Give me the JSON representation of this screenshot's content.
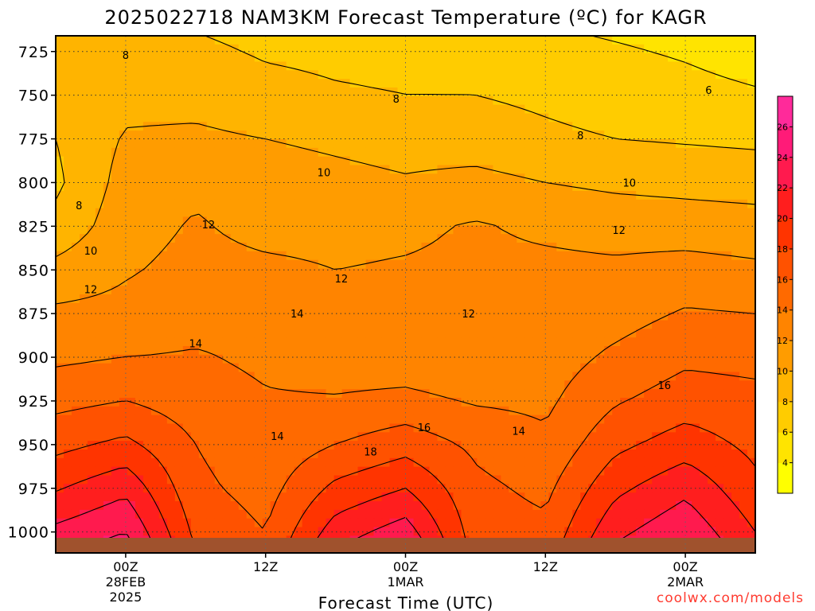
{
  "chart_data": {
    "type": "heatmap",
    "title": "2025022718 NAM3KM Forecast Temperature (ºC) for KAGR",
    "xlabel": "Forecast Time (UTC)",
    "ylabel": "",
    "y_scale": "pressure (hPa, inverted)",
    "y_ticks": [
      "725",
      "750",
      "775",
      "800",
      "825",
      "850",
      "875",
      "900",
      "925",
      "950",
      "975",
      "1000"
    ],
    "y_tick_values": [
      725,
      750,
      775,
      800,
      825,
      850,
      875,
      900,
      925,
      950,
      975,
      1000
    ],
    "ylim": [
      1012,
      716
    ],
    "x_ticks": [
      {
        "hours": 6,
        "label": "00Z",
        "sub1": "28FEB",
        "sub2": "2025"
      },
      {
        "hours": 18,
        "label": "12Z",
        "sub1": "",
        "sub2": ""
      },
      {
        "hours": 30,
        "label": "00Z",
        "sub1": "1MAR",
        "sub2": ""
      },
      {
        "hours": 42,
        "label": "12Z",
        "sub1": "",
        "sub2": ""
      },
      {
        "hours": 54,
        "label": "00Z",
        "sub1": "2MAR",
        "sub2": ""
      }
    ],
    "xlim": [
      0,
      60
    ],
    "grid": true,
    "colorbar": {
      "placement": "right",
      "levels": [
        4,
        6,
        8,
        10,
        12,
        14,
        16,
        18,
        20,
        22,
        24,
        26
      ],
      "labels": [
        "4",
        "6",
        "8",
        "10",
        "12",
        "14",
        "16",
        "18",
        "20",
        "22",
        "24",
        "26"
      ],
      "colors": [
        "#ffff00",
        "#ffe400",
        "#ffcc00",
        "#ffb400",
        "#ff9c00",
        "#ff8400",
        "#ff6a00",
        "#ff5200",
        "#ff3400",
        "#ff1e1e",
        "#ff1a4e",
        "#ff1b78",
        "#ff2a9a"
      ]
    },
    "contour_labels": [
      {
        "text": "8",
        "hours": 6.0,
        "p": 727
      },
      {
        "text": "8",
        "hours": 29.2,
        "p": 752
      },
      {
        "text": "6",
        "hours": 56.0,
        "p": 747
      },
      {
        "text": "8",
        "hours": 45.0,
        "p": 773
      },
      {
        "text": "10",
        "hours": 23.0,
        "p": 794
      },
      {
        "text": "10",
        "hours": 49.2,
        "p": 800
      },
      {
        "text": "8",
        "hours": 2.0,
        "p": 813
      },
      {
        "text": "12",
        "hours": 13.1,
        "p": 824
      },
      {
        "text": "12",
        "hours": 48.3,
        "p": 827
      },
      {
        "text": "10",
        "hours": 3.0,
        "p": 839
      },
      {
        "text": "12",
        "hours": 24.5,
        "p": 855
      },
      {
        "text": "12",
        "hours": 3.0,
        "p": 861
      },
      {
        "text": "14",
        "hours": 20.7,
        "p": 875
      },
      {
        "text": "12",
        "hours": 35.4,
        "p": 875
      },
      {
        "text": "14",
        "hours": 12.0,
        "p": 892
      },
      {
        "text": "16",
        "hours": 52.2,
        "p": 916
      },
      {
        "text": "16",
        "hours": 31.6,
        "p": 940
      },
      {
        "text": "14",
        "hours": 39.7,
        "p": 942
      },
      {
        "text": "14",
        "hours": 19.0,
        "p": 945
      },
      {
        "text": "18",
        "hours": 27.0,
        "p": 954
      }
    ],
    "series": [
      {
        "hours": 0,
        "temps": {
          "725": 9,
          "750": 8.4,
          "775": 8.0,
          "800": 7.6,
          "825": 8.6,
          "850": 10.6,
          "875": 12.4,
          "900": 13.6,
          "925": 15.4,
          "950": 17.4,
          "975": 19.8,
          "1000": 22.5
        }
      },
      {
        "hours": 6,
        "temps": {
          "725": 9,
          "750": 9.4,
          "775": 10.2,
          "800": 10.8,
          "825": 11.2,
          "850": 11.8,
          "875": 12.6,
          "900": 14.0,
          "925": 16.0,
          "950": 18.5,
          "975": 21.5,
          "1000": 24.0
        }
      },
      {
        "hours": 12,
        "temps": {
          "725": 8.4,
          "750": 9.3,
          "775": 10.4,
          "800": 11.6,
          "825": 12.2,
          "850": 12.6,
          "875": 13.2,
          "900": 14.2,
          "925": 15.0,
          "950": 16.0,
          "975": 16.5,
          "1000": 17.5
        }
      },
      {
        "hours": 18,
        "temps": {
          "725": 7.8,
          "750": 8.6,
          "775": 10.0,
          "800": 11.0,
          "825": 11.4,
          "850": 12.4,
          "875": 13.6,
          "900": 13.6,
          "925": 14.2,
          "950": 14.6,
          "975": 15.2,
          "1000": 16.0
        }
      },
      {
        "hours": 24,
        "temps": {
          "725": 7.6,
          "750": 8.2,
          "775": 9.6,
          "800": 10.6,
          "825": 11.4,
          "850": 12.0,
          "875": 12.6,
          "900": 12.9,
          "925": 14.2,
          "950": 16.0,
          "975": 18.5,
          "1000": 21.0
        }
      },
      {
        "hours": 30,
        "temps": {
          "725": 7.5,
          "750": 8.0,
          "775": 9.2,
          "800": 10.2,
          "825": 11.6,
          "850": 12.2,
          "875": 12.0,
          "900": 12.7,
          "925": 14.6,
          "950": 17.2,
          "975": 20.0,
          "1000": 23.0
        }
      },
      {
        "hours": 36,
        "temps": {
          "725": 7.4,
          "750": 8.0,
          "775": 9.0,
          "800": 10.6,
          "825": 12.2,
          "850": 12.4,
          "875": 12.1,
          "900": 12.2,
          "925": 13.8,
          "950": 15.6,
          "975": 16.5,
          "1000": 17.0
        }
      },
      {
        "hours": 42,
        "temps": {
          "725": 6.6,
          "750": 7.6,
          "775": 8.4,
          "800": 10.0,
          "825": 11.6,
          "850": 12.5,
          "875": 12.8,
          "900": 13.0,
          "925": 13.6,
          "950": 14.4,
          "975": 15.5,
          "1000": 16.5
        }
      },
      {
        "hours": 48,
        "temps": {
          "725": 6.2,
          "750": 7.1,
          "775": 8.0,
          "800": 9.6,
          "825": 11.2,
          "850": 12.4,
          "875": 13.2,
          "900": 14.4,
          "925": 15.8,
          "950": 17.5,
          "975": 19.5,
          "1000": 21.5
        }
      },
      {
        "hours": 54,
        "temps": {
          "725": 5.8,
          "750": 6.6,
          "775": 7.8,
          "800": 9.4,
          "825": 11.0,
          "850": 12.8,
          "875": 14.2,
          "900": 15.6,
          "925": 17.0,
          "950": 19.0,
          "975": 21.5,
          "1000": 23.5
        }
      },
      {
        "hours": 60,
        "temps": {
          "725": 5.2,
          "750": 6.2,
          "775": 7.6,
          "800": 9.2,
          "825": 10.8,
          "850": 12.4,
          "875": 14.0,
          "900": 15.4,
          "925": 16.6,
          "950": 17.5,
          "975": 18.5,
          "1000": 20.0
        }
      }
    ],
    "surface": {
      "label": "",
      "color": "#a0522d"
    }
  },
  "credit": "coolwx.com/models"
}
